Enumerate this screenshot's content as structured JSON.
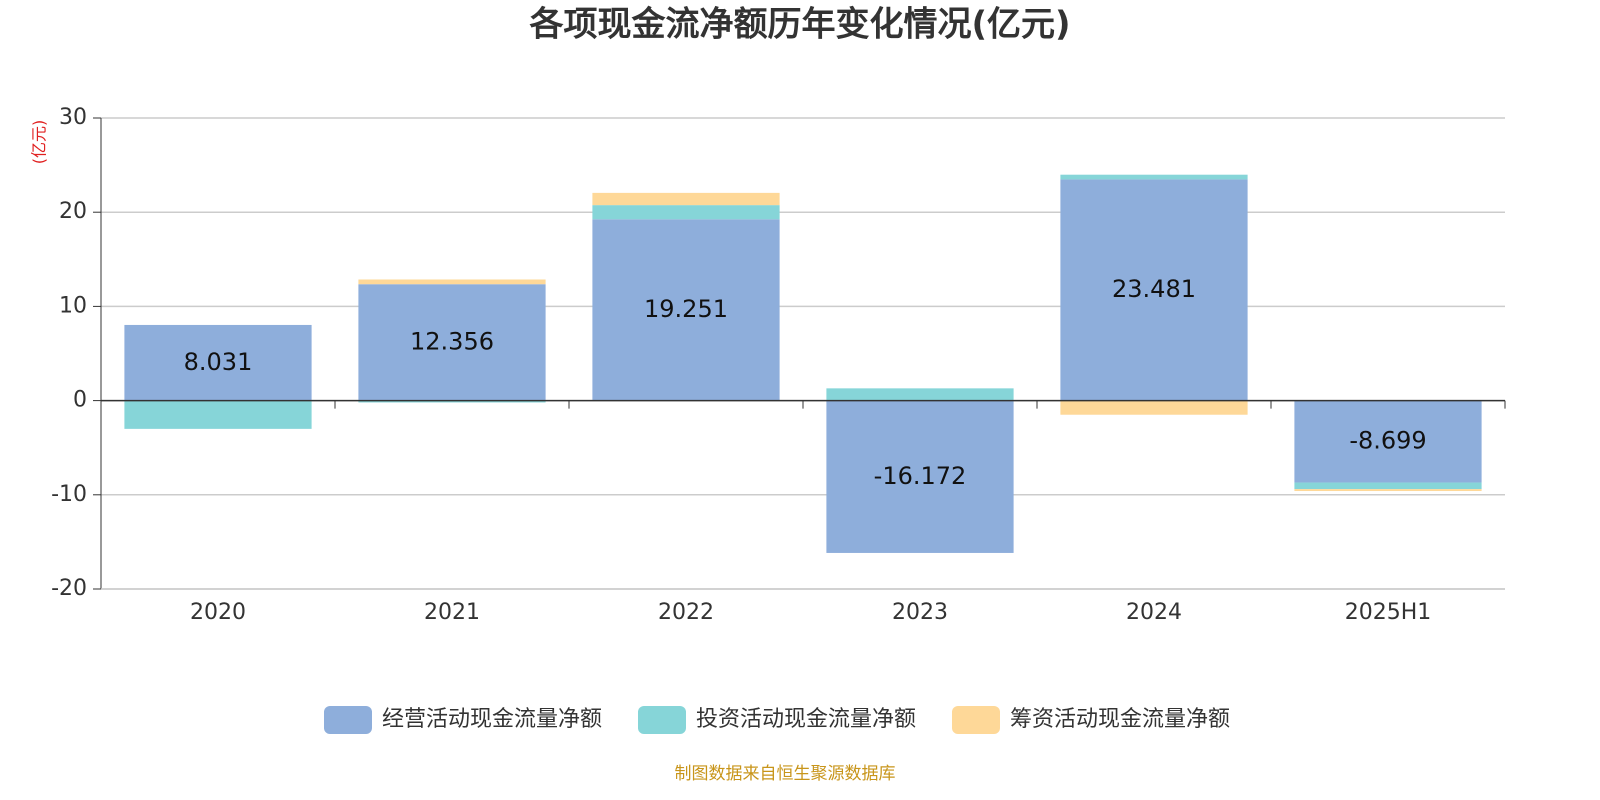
{
  "chart_data": {
    "type": "stacked_bar",
    "title": "各项现金流净额历年变化情况(亿元)",
    "y_axis_label": "(亿元)",
    "categories": [
      "2020",
      "2021",
      "2022",
      "2023",
      "2024",
      "2025H1"
    ],
    "series": [
      {
        "name": "经营活动现金流量净额",
        "color": "#8eaedb",
        "values": [
          8.031,
          12.356,
          19.251,
          -16.172,
          23.481,
          -8.699
        ],
        "show_labels": true
      },
      {
        "name": "投资活动现金流量净额",
        "color": "#86d5d8",
        "values": [
          -3.0,
          -0.2,
          1.5,
          1.3,
          0.5,
          -0.7
        ]
      },
      {
        "name": "筹资活动现金流量净额",
        "color": "#fed898",
        "values": [
          0,
          0.5,
          1.3,
          0,
          -1.5,
          -0.2
        ]
      }
    ],
    "ylim": [
      -20,
      30
    ],
    "yticks": [
      -20,
      -10,
      0,
      10,
      20,
      30
    ],
    "grid": true,
    "source": "制图数据来自恒生聚源数据库"
  }
}
